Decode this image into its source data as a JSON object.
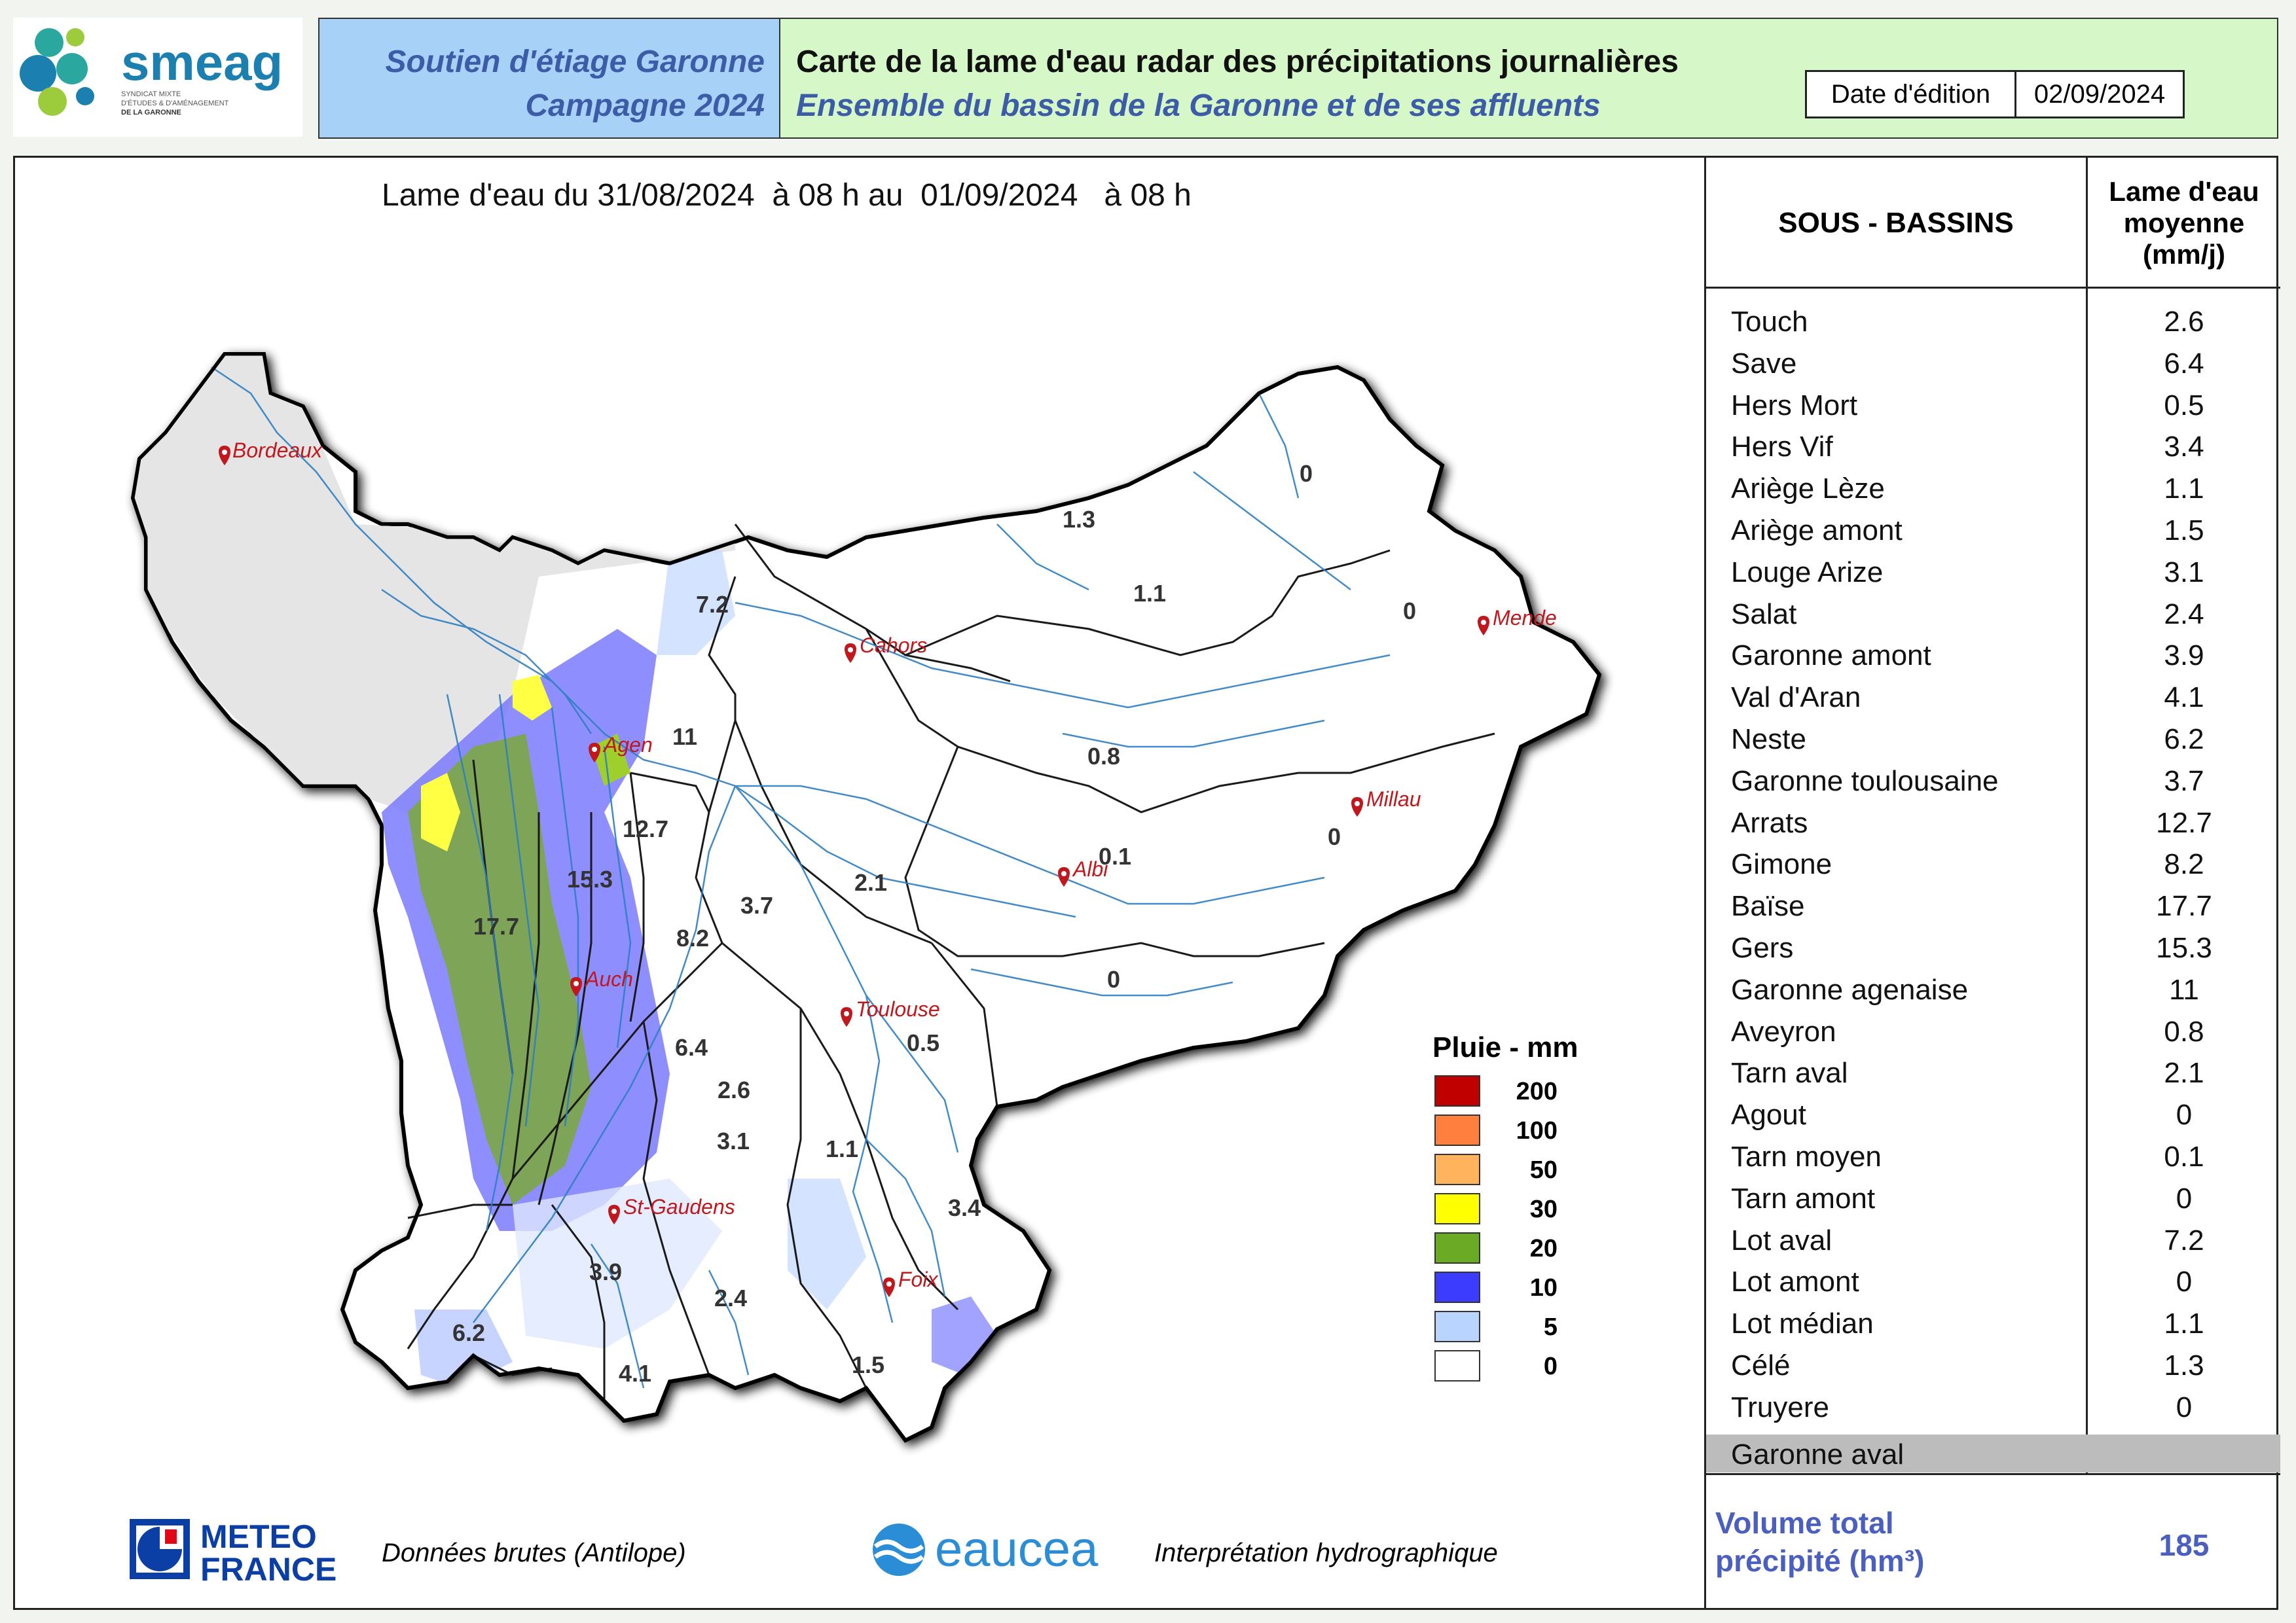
{
  "header": {
    "logo_name": "smeag",
    "logo_subtitle": [
      "SYNDICAT MIXTE",
      "D'ÉTUDES & D'AMÉNAGEMENT",
      "DE LA GARONNE"
    ],
    "program_line1": "Soutien d'étiage Garonne",
    "program_line2": "Campagne 2024",
    "title_line1": "Carte de la lame d'eau radar des précipitations journalières",
    "title_line2": "Ensemble du bassin de la Garonne et de ses affluents",
    "date_label": "Date d'édition",
    "date_value": "02/09/2024"
  },
  "map": {
    "title": "Lame d'eau du 31/08/2024  à 08 h au  01/09/2024   à 08 h",
    "cities": [
      "Bordeaux",
      "Cahors",
      "Mende",
      "Agen",
      "Millau",
      "Albi",
      "Auch",
      "Toulouse",
      "St-Gaudens",
      "Foix"
    ],
    "basin_values": [
      "0",
      "1.3",
      "7.2",
      "1.1",
      "0",
      "11",
      "0.8",
      "12.7",
      "0.1",
      "0",
      "15.3",
      "2.1",
      "3.7",
      "17.7",
      "8.2",
      "0",
      "0.5",
      "6.4",
      "2.6",
      "3.1",
      "1.1",
      "3.4",
      "3.9",
      "2.4",
      "6.2",
      "4.1",
      "1.5"
    ]
  },
  "legend": {
    "title": "Pluie - mm",
    "items": [
      {
        "label": "200",
        "color": "#c00000"
      },
      {
        "label": "100",
        "color": "#ff7f3f"
      },
      {
        "label": "50",
        "color": "#ffb35c"
      },
      {
        "label": "30",
        "color": "#ffff00"
      },
      {
        "label": "20",
        "color": "#6aaa24"
      },
      {
        "label": "10",
        "color": "#3c3cff"
      },
      {
        "label": "5",
        "color": "#b9d4ff"
      },
      {
        "label": "0",
        "color": "#ffffff"
      }
    ]
  },
  "table": {
    "col1_header": "SOUS - BASSINS",
    "col2_header_lines": [
      "Lame d'eau",
      "moyenne",
      "(mm/j)"
    ],
    "rows": [
      {
        "name": "Touch",
        "value": "2.6"
      },
      {
        "name": "Save",
        "value": "6.4"
      },
      {
        "name": "Hers Mort",
        "value": "0.5"
      },
      {
        "name": "Hers Vif",
        "value": "3.4"
      },
      {
        "name": "Ariège Lèze",
        "value": "1.1"
      },
      {
        "name": "Ariège amont",
        "value": "1.5"
      },
      {
        "name": "Louge Arize",
        "value": "3.1"
      },
      {
        "name": "Salat",
        "value": "2.4"
      },
      {
        "name": "Garonne amont",
        "value": "3.9"
      },
      {
        "name": "Val d'Aran",
        "value": "4.1"
      },
      {
        "name": "Neste",
        "value": "6.2"
      },
      {
        "name": "Garonne toulousaine",
        "value": "3.7"
      },
      {
        "name": "Arrats",
        "value": "12.7"
      },
      {
        "name": "Gimone",
        "value": "8.2"
      },
      {
        "name": "Baïse",
        "value": "17.7"
      },
      {
        "name": "Gers",
        "value": "15.3"
      },
      {
        "name": "Garonne agenaise",
        "value": "11"
      },
      {
        "name": "Aveyron",
        "value": "0.8"
      },
      {
        "name": "Tarn aval",
        "value": "2.1"
      },
      {
        "name": "Agout",
        "value": "0"
      },
      {
        "name": "Tarn moyen",
        "value": "0.1"
      },
      {
        "name": "Tarn amont",
        "value": "0"
      },
      {
        "name": "Lot aval",
        "value": "7.2"
      },
      {
        "name": "Lot amont",
        "value": "0"
      },
      {
        "name": "Lot médian",
        "value": "1.1"
      },
      {
        "name": "Célé",
        "value": "1.3"
      },
      {
        "name": "Truyere",
        "value": "0"
      }
    ],
    "grey_row": {
      "name": "Garonne aval",
      "value": ""
    },
    "volume_label_lines": [
      "Volume total",
      "précipité (hm³)"
    ],
    "volume_value": "185"
  },
  "footer": {
    "meteo_logo_lines": [
      "METEO",
      "FRANCE"
    ],
    "meteo_text": "Données brutes (Antilope)",
    "eaucea_logo": "eaucea",
    "eaucea_text": "Interprétation hydrographique"
  }
}
